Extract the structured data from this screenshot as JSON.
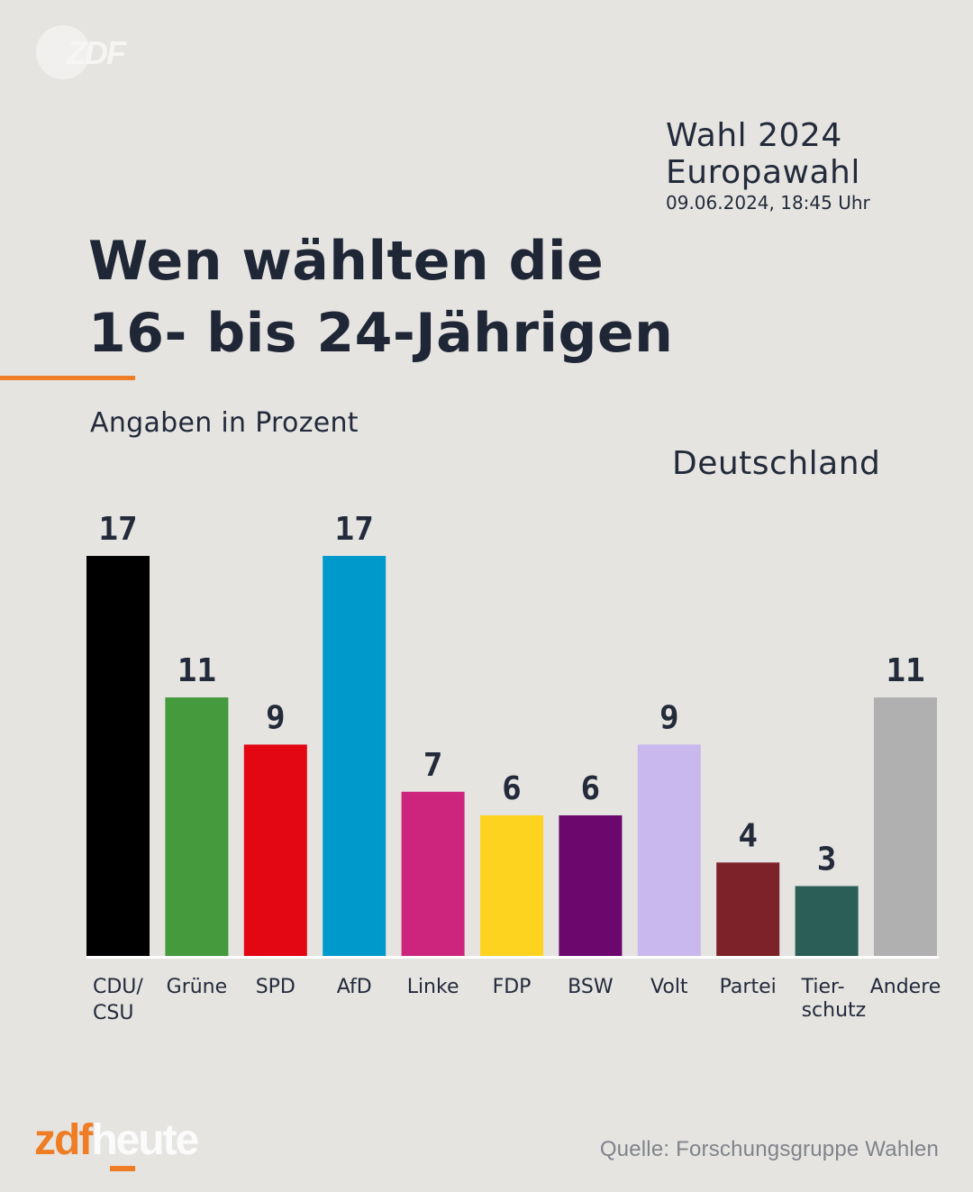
{
  "branding": {
    "top_logo": "ZDF",
    "footer_logo_part1": "zdf",
    "footer_logo_part2": "heute",
    "accent_color": "#ef7d25"
  },
  "meta": {
    "line1": "Wahl 2024",
    "line2": "Europawahl",
    "timestamp": "09.06.2024, 18:45 Uhr"
  },
  "headline": {
    "line1": "Wen wählten die",
    "line2": "16- bis 24-Jährigen"
  },
  "subtitle": "Angaben in Prozent",
  "region": "Deutschland",
  "source": "Quelle: Forschungsgruppe Wahlen",
  "chart_data": {
    "type": "bar",
    "title": "Wen wählten die 16- bis 24-Jährigen",
    "subtitle": "Angaben in Prozent",
    "xlabel": "",
    "ylabel": "Prozent",
    "ylim": [
      0,
      17
    ],
    "grid": false,
    "legend": "none",
    "categories": [
      "CDU/ CSU",
      "Grüne",
      "SPD",
      "AfD",
      "Linke",
      "FDP",
      "BSW",
      "Volt",
      "Partei",
      "Tier- schutz",
      "Andere"
    ],
    "label_lines": [
      [
        "CDU/",
        "CSU"
      ],
      [
        "Grüne"
      ],
      [
        "SPD"
      ],
      [
        "AfD"
      ],
      [
        "Linke"
      ],
      [
        "FDP"
      ],
      [
        "BSW"
      ],
      [
        "Volt"
      ],
      [
        "Partei"
      ],
      [
        "Tier-",
        "schutz"
      ],
      [
        "Andere"
      ]
    ],
    "values": [
      17,
      11,
      9,
      17,
      7,
      6,
      6,
      9,
      4,
      3,
      11
    ],
    "colors": [
      "#000000",
      "#459a3d",
      "#e30613",
      "#0099cc",
      "#cd257d",
      "#fdd31f",
      "#6b076d",
      "#c8b8ee",
      "#7c2228",
      "#2a5e57",
      "#b0b0b0"
    ]
  }
}
